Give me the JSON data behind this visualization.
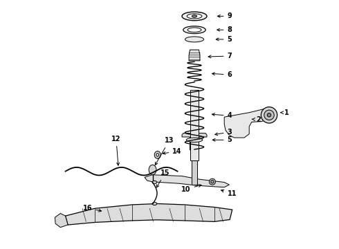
{
  "title": "",
  "bg_color": "#ffffff",
  "fig_width": 4.9,
  "fig_height": 3.6,
  "dpi": 100,
  "font_size": 7,
  "font_weight": "bold",
  "text_color": "#000000",
  "line_color": "#000000",
  "line_width": 0.7
}
